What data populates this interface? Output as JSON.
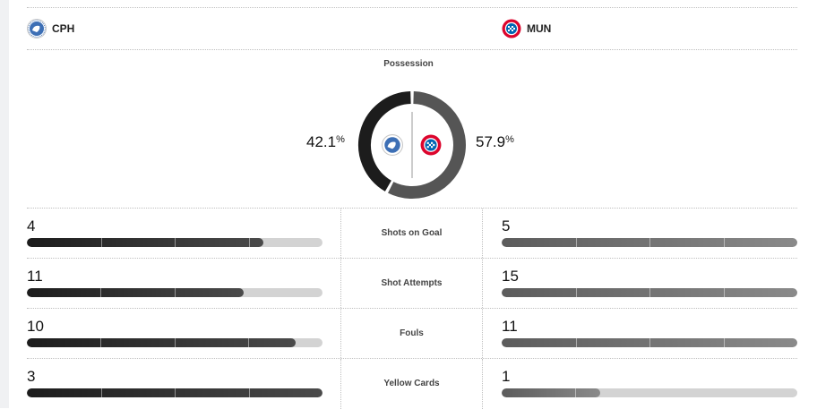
{
  "teams": {
    "home": {
      "abbr": "CPH",
      "logo_icon": "fc-copenhagen-crest-icon"
    },
    "away": {
      "abbr": "MUN",
      "logo_icon": "bayern-munich-crest-icon"
    }
  },
  "possession": {
    "title": "Possession",
    "home_pct": "42.1",
    "away_pct": "57.9",
    "pct_sign": "%",
    "home_fraction": 0.421,
    "away_fraction": 0.579
  },
  "colors": {
    "home_fill": "#1c1c1c",
    "away_fill": "#666666",
    "track": "#d3d3d3"
  },
  "stats": [
    {
      "label": "Shots on Goal",
      "home": "4",
      "away": "5",
      "home_fill": 0.8,
      "away_fill": 1.0
    },
    {
      "label": "Shot Attempts",
      "home": "11",
      "away": "15",
      "home_fill": 0.733,
      "away_fill": 1.0
    },
    {
      "label": "Fouls",
      "home": "10",
      "away": "11",
      "home_fill": 0.909,
      "away_fill": 1.0
    },
    {
      "label": "Yellow Cards",
      "home": "3",
      "away": "1",
      "home_fill": 1.0,
      "away_fill": 0.333
    }
  ]
}
